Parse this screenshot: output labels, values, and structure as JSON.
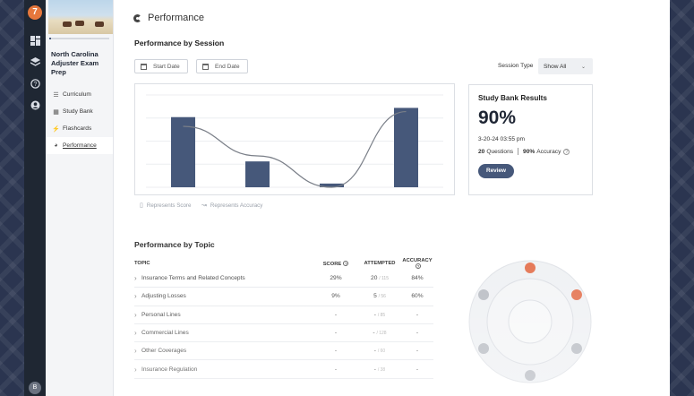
{
  "rail": {
    "logo": "7",
    "icons": [
      "dashboard-icon",
      "layers-icon",
      "help-icon",
      "account-icon"
    ],
    "avatar": "B"
  },
  "course": {
    "title": "North Carolina Adjuster Exam Prep",
    "progress_fraction": 0.03,
    "nav": [
      {
        "label": "Curriculum",
        "icon": "curriculum-icon"
      },
      {
        "label": "Study Bank",
        "icon": "study-bank-icon"
      },
      {
        "label": "Flashcards",
        "icon": "flashcards-icon"
      },
      {
        "label": "Performance",
        "icon": "performance-icon",
        "active": true
      }
    ]
  },
  "page": {
    "title": "Performance"
  },
  "session": {
    "title": "Performance by Session",
    "start_date": "Start Date",
    "end_date": "End Date",
    "type_label": "Session Type",
    "type_value": "Show All"
  },
  "chart_data": {
    "type": "bar",
    "categories": [
      "",
      "",
      "",
      ""
    ],
    "series": [
      {
        "name": "Represents Score",
        "type": "bar",
        "values": [
          76,
          28,
          4,
          86
        ]
      },
      {
        "name": "Represents Accuracy",
        "type": "line",
        "values": [
          66,
          34,
          0,
          82
        ]
      }
    ],
    "ylim": [
      0,
      100
    ],
    "legend": [
      "Represents Score",
      "Represents Accuracy"
    ],
    "colors": {
      "bar": "#46587a",
      "line": "#7a7f88"
    }
  },
  "results": {
    "title": "Study Bank Results",
    "percent": "90%",
    "datetime": "3-20-24 03:55 pm",
    "questions_count": "20",
    "questions_label": "Questions",
    "accuracy_value": "90%",
    "accuracy_label": "Accuracy",
    "review_label": "Review"
  },
  "topics": {
    "title": "Performance by Topic",
    "headers": {
      "topic": "TOPIC",
      "score": "SCORE",
      "attempted": "ATTEMPTED",
      "accuracy": "ACCURACY"
    },
    "rows": [
      {
        "topic": "Insurance Terms and Related Concepts",
        "score": "29%",
        "attempted": "20",
        "total": "/ 115",
        "accuracy": "84%"
      },
      {
        "topic": "Adjusting Losses",
        "score": "9%",
        "attempted": "5",
        "total": "/ 56",
        "accuracy": "60%"
      },
      {
        "topic": "Personal Lines",
        "score": "-",
        "attempted": "-",
        "total": "/ 85",
        "accuracy": "-"
      },
      {
        "topic": "Commercial Lines",
        "score": "-",
        "attempted": "-",
        "total": "/ 128",
        "accuracy": "-"
      },
      {
        "topic": "Other Coverages",
        "score": "-",
        "attempted": "-",
        "total": "/ 60",
        "accuracy": "-"
      },
      {
        "topic": "Insurance Regulation",
        "score": "-",
        "attempted": "-",
        "total": "/ 38",
        "accuracy": "-"
      }
    ]
  },
  "radial": {
    "active_color": "#e26a45",
    "inactive_color": "#b5b9c0",
    "active": [
      true,
      true,
      false,
      false,
      false,
      false
    ]
  }
}
